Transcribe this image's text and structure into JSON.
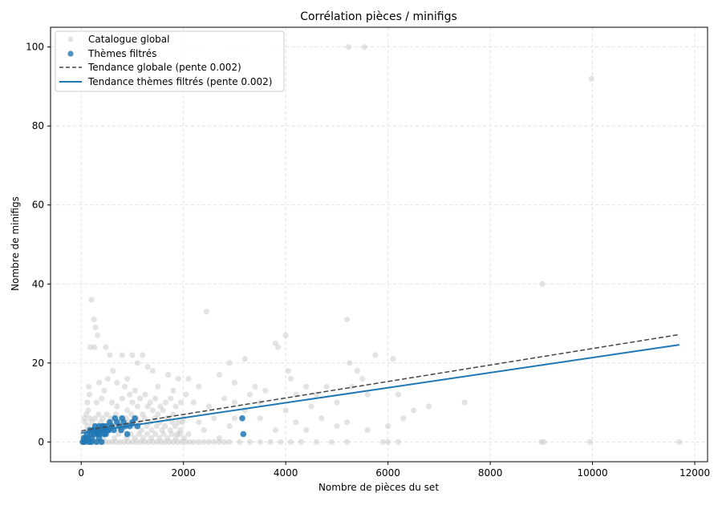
{
  "chart_data": {
    "type": "scatter",
    "title": "Corrélation pièces / minifigs",
    "xlabel": "Nombre de pièces du set",
    "ylabel": "Nombre de minifigs",
    "xlim": [
      -600,
      12250
    ],
    "ylim": [
      -5,
      105
    ],
    "xticks": [
      0,
      2000,
      4000,
      6000,
      8000,
      10000,
      12000
    ],
    "yticks": [
      0,
      20,
      40,
      60,
      80,
      100
    ],
    "grid": true,
    "legend_position": "top-left",
    "colors": {
      "global": "#c0c0c0",
      "filtered": "#1f77b4",
      "global_trend": "#444444",
      "filtered_trend": "#1f77b4"
    },
    "series": [
      {
        "name": "Catalogue global",
        "kind": "scatter",
        "points": [
          [
            200,
            36
          ],
          [
            250,
            31
          ],
          [
            280,
            29
          ],
          [
            320,
            27
          ],
          [
            180,
            24
          ],
          [
            260,
            24
          ],
          [
            480,
            24
          ],
          [
            560,
            22
          ],
          [
            620,
            18
          ],
          [
            800,
            22
          ],
          [
            900,
            16
          ],
          [
            1000,
            22
          ],
          [
            1100,
            20
          ],
          [
            1200,
            22
          ],
          [
            1300,
            19
          ],
          [
            1400,
            18
          ],
          [
            1500,
            14
          ],
          [
            1700,
            17
          ],
          [
            1800,
            13
          ],
          [
            1900,
            16
          ],
          [
            2050,
            12
          ],
          [
            2100,
            16
          ],
          [
            2300,
            14
          ],
          [
            2450,
            33
          ],
          [
            2700,
            17
          ],
          [
            2900,
            20
          ],
          [
            3000,
            15
          ],
          [
            3200,
            21
          ],
          [
            3300,
            12
          ],
          [
            3400,
            14
          ],
          [
            3500,
            10
          ],
          [
            3600,
            13
          ],
          [
            3800,
            25
          ],
          [
            3850,
            24
          ],
          [
            4000,
            27
          ],
          [
            4050,
            18
          ],
          [
            4100,
            16
          ],
          [
            4200,
            12
          ],
          [
            4400,
            14
          ],
          [
            4500,
            9
          ],
          [
            4600,
            12
          ],
          [
            4800,
            14
          ],
          [
            5000,
            10
          ],
          [
            5200,
            31
          ],
          [
            5250,
            20
          ],
          [
            5300,
            14
          ],
          [
            5400,
            18
          ],
          [
            5500,
            16
          ],
          [
            5600,
            12
          ],
          [
            5750,
            22
          ],
          [
            6100,
            21
          ],
          [
            6200,
            12
          ],
          [
            6500,
            8
          ],
          [
            6800,
            9
          ],
          [
            7500,
            10
          ],
          [
            5230,
            100
          ],
          [
            5540,
            100
          ],
          [
            9020,
            40
          ],
          [
            9980,
            92
          ],
          [
            9000,
            0
          ],
          [
            9050,
            0
          ],
          [
            9950,
            0
          ],
          [
            11700,
            0
          ],
          [
            3100,
            0
          ],
          [
            3300,
            0
          ],
          [
            3500,
            0
          ],
          [
            3700,
            0
          ],
          [
            3900,
            0
          ],
          [
            4100,
            0
          ],
          [
            4300,
            0
          ],
          [
            4600,
            0
          ],
          [
            4900,
            0
          ],
          [
            5200,
            0
          ],
          [
            5900,
            0
          ],
          [
            6000,
            0
          ],
          [
            6200,
            0
          ],
          [
            3000,
            6
          ],
          [
            3200,
            8
          ],
          [
            3500,
            6
          ],
          [
            3800,
            3
          ],
          [
            4000,
            8
          ],
          [
            4200,
            5
          ],
          [
            4400,
            3
          ],
          [
            4700,
            6
          ],
          [
            5000,
            4
          ],
          [
            5200,
            5
          ],
          [
            5600,
            3
          ],
          [
            6000,
            4
          ],
          [
            6300,
            6
          ],
          [
            2200,
            10
          ],
          [
            2500,
            9
          ],
          [
            2800,
            11
          ],
          [
            3000,
            10
          ],
          [
            2300,
            5
          ],
          [
            2600,
            6
          ],
          [
            2900,
            4
          ],
          [
            2100,
            2
          ],
          [
            2400,
            3
          ],
          [
            2700,
            1
          ],
          [
            150,
            14
          ],
          [
            350,
            15
          ],
          [
            450,
            13
          ],
          [
            520,
            16
          ],
          [
            700,
            15
          ],
          [
            850,
            14
          ],
          [
            950,
            12
          ],
          [
            1050,
            13
          ],
          [
            1150,
            11
          ],
          [
            1250,
            12
          ],
          [
            1350,
            10
          ],
          [
            1450,
            11
          ],
          [
            1550,
            9
          ],
          [
            1650,
            10
          ],
          [
            1750,
            11
          ],
          [
            1850,
            9
          ],
          [
            1950,
            10
          ],
          [
            120,
            10
          ],
          [
            140,
            8
          ],
          [
            160,
            12
          ],
          [
            300,
            10
          ],
          [
            400,
            11
          ],
          [
            600,
            10
          ],
          [
            700,
            9
          ],
          [
            800,
            11
          ],
          [
            900,
            8
          ],
          [
            1000,
            10
          ],
          [
            1100,
            9
          ],
          [
            1200,
            7
          ],
          [
            1300,
            9
          ],
          [
            1400,
            8
          ],
          [
            1500,
            7
          ],
          [
            1600,
            8
          ],
          [
            1700,
            6
          ],
          [
            1800,
            7
          ],
          [
            1900,
            5
          ],
          [
            2000,
            6
          ],
          [
            60,
            6
          ],
          [
            80,
            5
          ],
          [
            100,
            7
          ],
          [
            130,
            4
          ],
          [
            170,
            6
          ],
          [
            210,
            5
          ],
          [
            240,
            3
          ],
          [
            270,
            6
          ],
          [
            310,
            4
          ],
          [
            340,
            7
          ],
          [
            380,
            5
          ],
          [
            420,
            6
          ],
          [
            460,
            4
          ],
          [
            500,
            7
          ],
          [
            540,
            5
          ],
          [
            580,
            6
          ],
          [
            640,
            4
          ],
          [
            680,
            7
          ],
          [
            720,
            5
          ],
          [
            760,
            6
          ],
          [
            820,
            4
          ],
          [
            880,
            6
          ],
          [
            940,
            5
          ],
          [
            980,
            7
          ],
          [
            1040,
            4
          ],
          [
            1080,
            6
          ],
          [
            1140,
            5
          ],
          [
            1180,
            3
          ],
          [
            1240,
            6
          ],
          [
            1280,
            4
          ],
          [
            1340,
            5
          ],
          [
            1380,
            3
          ],
          [
            1440,
            6
          ],
          [
            1480,
            4
          ],
          [
            1540,
            5
          ],
          [
            1580,
            3
          ],
          [
            1640,
            4
          ],
          [
            1680,
            6
          ],
          [
            1740,
            3
          ],
          [
            1780,
            5
          ],
          [
            1840,
            4
          ],
          [
            1880,
            2
          ],
          [
            1940,
            3
          ],
          [
            1980,
            5
          ],
          [
            20,
            0
          ],
          [
            50,
            0
          ],
          [
            90,
            0
          ],
          [
            150,
            0
          ],
          [
            200,
            0
          ],
          [
            260,
            0
          ],
          [
            330,
            0
          ],
          [
            400,
            0
          ],
          [
            470,
            0
          ],
          [
            540,
            0
          ],
          [
            610,
            0
          ],
          [
            680,
            0
          ],
          [
            760,
            0
          ],
          [
            840,
            0
          ],
          [
            920,
            0
          ],
          [
            1000,
            0
          ],
          [
            1080,
            0
          ],
          [
            1160,
            0
          ],
          [
            1240,
            0
          ],
          [
            1320,
            0
          ],
          [
            1400,
            0
          ],
          [
            1480,
            0
          ],
          [
            1560,
            0
          ],
          [
            1640,
            0
          ],
          [
            1720,
            0
          ],
          [
            1800,
            0
          ],
          [
            1880,
            0
          ],
          [
            1960,
            0
          ],
          [
            2040,
            0
          ],
          [
            2120,
            0
          ],
          [
            2200,
            0
          ],
          [
            2300,
            0
          ],
          [
            2400,
            0
          ],
          [
            2500,
            0
          ],
          [
            2600,
            0
          ],
          [
            2700,
            0
          ],
          [
            2800,
            0
          ],
          [
            2900,
            0
          ],
          [
            30,
            2
          ],
          [
            70,
            1
          ],
          [
            110,
            3
          ],
          [
            190,
            2
          ],
          [
            230,
            1
          ],
          [
            290,
            3
          ],
          [
            360,
            2
          ],
          [
            430,
            1
          ],
          [
            500,
            2
          ],
          [
            570,
            3
          ],
          [
            650,
            1
          ],
          [
            730,
            2
          ],
          [
            810,
            3
          ],
          [
            890,
            1
          ],
          [
            970,
            2
          ],
          [
            1050,
            1
          ],
          [
            1130,
            2
          ],
          [
            1210,
            1
          ],
          [
            1290,
            2
          ],
          [
            1370,
            1
          ],
          [
            1450,
            2
          ],
          [
            1530,
            1
          ],
          [
            1610,
            2
          ],
          [
            1690,
            1
          ],
          [
            1770,
            2
          ],
          [
            1850,
            1
          ],
          [
            1930,
            2
          ],
          [
            2010,
            1
          ]
        ]
      },
      {
        "name": "Thèmes filtrés",
        "kind": "scatter",
        "points": [
          [
            30,
            0
          ],
          [
            50,
            1
          ],
          [
            70,
            0
          ],
          [
            90,
            1
          ],
          [
            110,
            2
          ],
          [
            130,
            1
          ],
          [
            150,
            0
          ],
          [
            170,
            3
          ],
          [
            190,
            2
          ],
          [
            210,
            1
          ],
          [
            230,
            3
          ],
          [
            250,
            2
          ],
          [
            270,
            4
          ],
          [
            290,
            3
          ],
          [
            310,
            2
          ],
          [
            330,
            3
          ],
          [
            350,
            4
          ],
          [
            370,
            2
          ],
          [
            390,
            3
          ],
          [
            410,
            4
          ],
          [
            430,
            3
          ],
          [
            450,
            2
          ],
          [
            470,
            3
          ],
          [
            500,
            4
          ],
          [
            520,
            3
          ],
          [
            560,
            5
          ],
          [
            600,
            4
          ],
          [
            640,
            3
          ],
          [
            660,
            6
          ],
          [
            700,
            5
          ],
          [
            740,
            4
          ],
          [
            780,
            3
          ],
          [
            800,
            6
          ],
          [
            830,
            5
          ],
          [
            860,
            4
          ],
          [
            900,
            2
          ],
          [
            950,
            4
          ],
          [
            1000,
            5
          ],
          [
            1050,
            6
          ],
          [
            1100,
            4
          ],
          [
            200,
            0
          ],
          [
            300,
            0
          ],
          [
            350,
            1
          ],
          [
            400,
            0
          ],
          [
            250,
            3
          ],
          [
            320,
            2
          ],
          [
            380,
            3
          ],
          [
            440,
            4
          ],
          [
            480,
            2
          ],
          [
            540,
            3
          ],
          [
            3150,
            6
          ],
          [
            3170,
            2
          ]
        ]
      },
      {
        "name": "Tendance globale (pente 0.002)",
        "kind": "line",
        "dashed": true,
        "points": [
          [
            0,
            2.8
          ],
          [
            11700,
            27.2
          ]
        ]
      },
      {
        "name": "Tendance thèmes filtrés (pente 0.002)",
        "kind": "line",
        "dashed": false,
        "points": [
          [
            0,
            2.3
          ],
          [
            11700,
            24.6
          ]
        ]
      }
    ]
  }
}
